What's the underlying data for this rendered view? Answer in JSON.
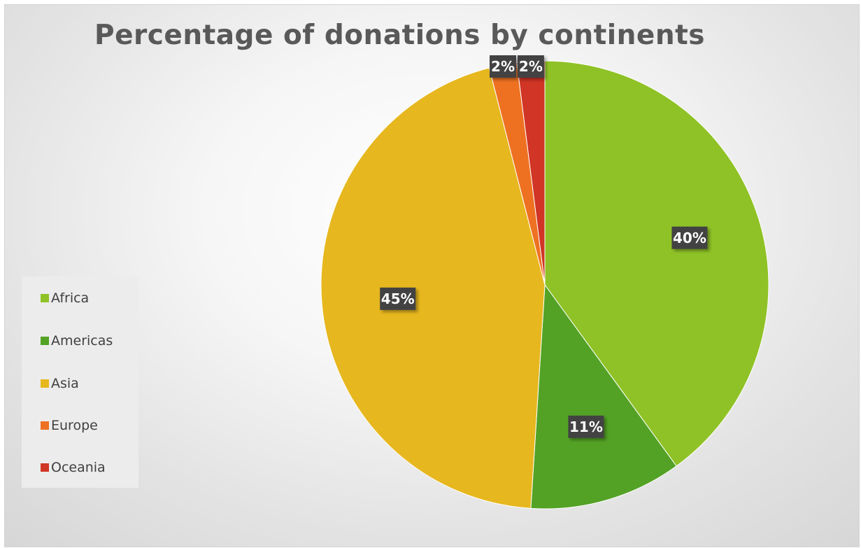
{
  "chart_data": {
    "type": "pie",
    "title": "Percentage of donations by continents",
    "categories": [
      "Africa",
      "Americas",
      "Asia",
      "Europe",
      "Oceania"
    ],
    "values": [
      40,
      11,
      45,
      2,
      2
    ],
    "data_labels": [
      "40%",
      "11%",
      "45%",
      "2%",
      "2%"
    ],
    "colors": [
      "#8fc226",
      "#53a225",
      "#e6b71e",
      "#ee7122",
      "#d03525"
    ],
    "legend_position": "left",
    "start_angle_deg": 0,
    "direction": "clockwise"
  }
}
